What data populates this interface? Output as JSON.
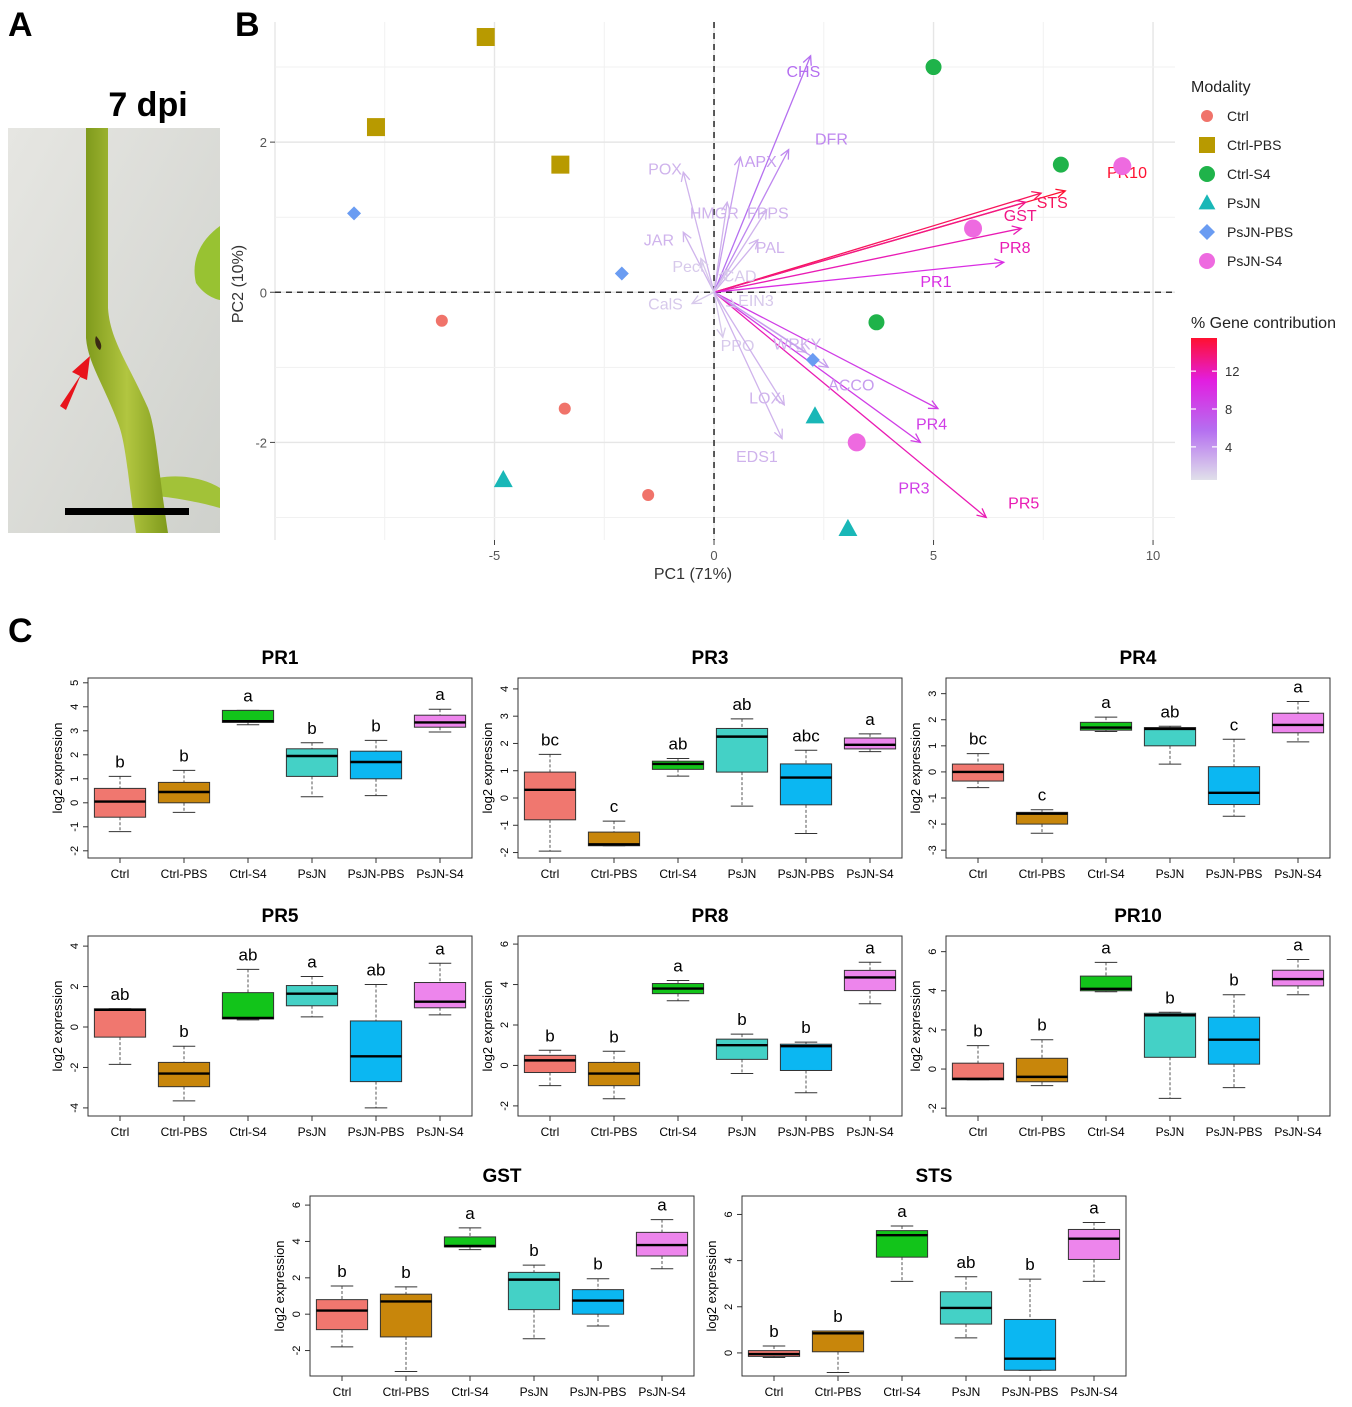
{
  "panels": {
    "A": "A",
    "B": "B",
    "C": "C"
  },
  "photo": {
    "label": "7 dpi"
  },
  "pca": {
    "type": "scatter",
    "xlabel": "PC1 (71%)",
    "ylabel": "PC2 (10%)",
    "xlim": [
      -10,
      10.5
    ],
    "ylim": [
      -3.3,
      3.6
    ],
    "xticks": [
      -5,
      0,
      5,
      10
    ],
    "yticks": [
      -2,
      0,
      2
    ],
    "legend_title": "Modality",
    "gradient_title": "% Gene contribution",
    "gradient_ticks": [
      4,
      8,
      12
    ],
    "groups": [
      {
        "name": "Ctrl",
        "color": "#f0736a",
        "shape": "circle",
        "points": [
          [
            -6.2,
            -0.38
          ],
          [
            -3.4,
            -1.55
          ],
          [
            -1.5,
            -2.7
          ]
        ]
      },
      {
        "name": "Ctrl-PBS",
        "color": "#b89a00",
        "shape": "square",
        "points": [
          [
            -5.2,
            3.4
          ],
          [
            -7.7,
            2.2
          ],
          [
            -3.5,
            1.7
          ]
        ]
      },
      {
        "name": "Ctrl-S4",
        "color": "#1fb34a",
        "shape": "circle",
        "points": [
          [
            5.0,
            3.0
          ],
          [
            7.9,
            1.7
          ],
          [
            3.7,
            -0.4
          ]
        ]
      },
      {
        "name": "PsJN",
        "color": "#19b7b7",
        "shape": "triangle",
        "points": [
          [
            -4.8,
            -2.5
          ],
          [
            2.3,
            -1.65
          ],
          [
            3.05,
            -3.15
          ]
        ]
      },
      {
        "name": "PsJN-PBS",
        "color": "#6a9cf2",
        "shape": "diamond",
        "points": [
          [
            -8.2,
            1.05
          ],
          [
            -2.1,
            0.25
          ],
          [
            2.25,
            -0.9
          ]
        ]
      },
      {
        "name": "PsJN-S4",
        "color": "#ee6ae0",
        "shape": "circle",
        "points": [
          [
            9.3,
            1.68
          ],
          [
            5.9,
            0.85
          ],
          [
            3.25,
            -2.0
          ]
        ]
      }
    ],
    "loadings": [
      {
        "gene": "PR10",
        "x": 8.0,
        "y": 1.35,
        "contribution": 14,
        "lx": 8.95,
        "ly": 1.6
      },
      {
        "gene": "STS",
        "x": 7.45,
        "y": 1.32,
        "contribution": 13,
        "lx": 7.35,
        "ly": 1.2
      },
      {
        "gene": "GST",
        "x": 7.1,
        "y": 1.2,
        "contribution": 12,
        "lx": 6.6,
        "ly": 1.03
      },
      {
        "gene": "PR8",
        "x": 7.0,
        "y": 0.85,
        "contribution": 11,
        "lx": 6.5,
        "ly": 0.6
      },
      {
        "gene": "PR1",
        "x": 6.6,
        "y": 0.4,
        "contribution": 9,
        "lx": 4.7,
        "ly": 0.15
      },
      {
        "gene": "PR5",
        "x": 6.2,
        "y": -3.0,
        "contribution": 11,
        "lx": 6.7,
        "ly": -2.8
      },
      {
        "gene": "PR4",
        "x": 5.1,
        "y": -1.55,
        "contribution": 8,
        "lx": 4.6,
        "ly": -1.75
      },
      {
        "gene": "PR3",
        "x": 4.7,
        "y": -2.0,
        "contribution": 8,
        "lx": 4.2,
        "ly": -2.6
      },
      {
        "gene": "CHS",
        "x": 2.2,
        "y": 3.15,
        "contribution": 5,
        "lx": 1.65,
        "ly": 2.95
      },
      {
        "gene": "DFR",
        "x": 1.7,
        "y": 1.9,
        "contribution": 4,
        "lx": 2.3,
        "ly": 2.05
      },
      {
        "gene": "APX",
        "x": 0.6,
        "y": 1.8,
        "contribution": 3,
        "lx": 0.7,
        "ly": 1.75
      },
      {
        "gene": "POX",
        "x": -0.7,
        "y": 1.6,
        "contribution": 2,
        "lx": -1.5,
        "ly": 1.65
      },
      {
        "gene": "HMGR",
        "x": 0.3,
        "y": 1.2,
        "contribution": 2,
        "lx": -0.55,
        "ly": 1.06
      },
      {
        "gene": "FPPS",
        "x": 1.2,
        "y": 1.1,
        "contribution": 2,
        "lx": 0.75,
        "ly": 1.06
      },
      {
        "gene": "JAR",
        "x": -0.7,
        "y": 0.8,
        "contribution": 2,
        "lx": -1.6,
        "ly": 0.7
      },
      {
        "gene": "PAL",
        "x": 1.0,
        "y": 0.7,
        "contribution": 2,
        "lx": 0.95,
        "ly": 0.6
      },
      {
        "gene": "Pect",
        "x": -0.3,
        "y": 0.45,
        "contribution": 1,
        "lx": -0.95,
        "ly": 0.35
      },
      {
        "gene": "CAD",
        "x": 0.3,
        "y": 0.3,
        "contribution": 1,
        "lx": 0.2,
        "ly": 0.22
      },
      {
        "gene": "CalS",
        "x": -0.5,
        "y": -0.15,
        "contribution": 1,
        "lx": -1.5,
        "ly": -0.15
      },
      {
        "gene": "EIN3",
        "x": 0.5,
        "y": -0.2,
        "contribution": 1,
        "lx": 0.55,
        "ly": -0.1
      },
      {
        "gene": "PPO",
        "x": 0.2,
        "y": -0.6,
        "contribution": 1,
        "lx": 0.15,
        "ly": -0.7
      },
      {
        "gene": "WRKY",
        "x": 2.1,
        "y": -0.8,
        "contribution": 2,
        "lx": 1.35,
        "ly": -0.68
      },
      {
        "gene": "ACCO",
        "x": 2.6,
        "y": -1.0,
        "contribution": 3,
        "lx": 2.6,
        "ly": -1.23
      },
      {
        "gene": "LOX",
        "x": 1.6,
        "y": -1.5,
        "contribution": 2,
        "lx": 0.8,
        "ly": -1.4
      },
      {
        "gene": "EDS1",
        "x": 1.55,
        "y": -1.95,
        "contribution": 2,
        "lx": 0.5,
        "ly": -2.18
      }
    ]
  },
  "chart_data": [
    {
      "type": "box",
      "title": "PR1",
      "ylabel": "log2 expression",
      "yticks": [
        -2,
        -1,
        0,
        1,
        2,
        3,
        4,
        5
      ],
      "ylim": [
        -2.3,
        5.2
      ],
      "categories": [
        "Ctrl",
        "Ctrl-PBS",
        "Ctrl-S4",
        "PsJN",
        "PsJN-PBS",
        "PsJN-S4"
      ],
      "boxes": [
        [
          -1.2,
          -0.6,
          0.05,
          0.6,
          1.1
        ],
        [
          -0.4,
          0.0,
          0.45,
          0.85,
          1.35
        ],
        [
          3.25,
          3.35,
          3.4,
          3.85,
          3.85
        ],
        [
          0.25,
          1.1,
          1.95,
          2.25,
          2.5
        ],
        [
          0.3,
          1.0,
          1.7,
          2.15,
          2.6
        ],
        [
          2.95,
          3.15,
          3.35,
          3.65,
          3.9
        ]
      ],
      "letters": [
        "b",
        "b",
        "a",
        "b",
        "b",
        "a"
      ]
    },
    {
      "type": "box",
      "title": "PR3",
      "ylabel": "log2 expression",
      "yticks": [
        -2,
        -1,
        0,
        1,
        2,
        3,
        4
      ],
      "ylim": [
        -2.2,
        4.4
      ],
      "categories": [
        "Ctrl",
        "Ctrl-PBS",
        "Ctrl-S4",
        "PsJN",
        "PsJN-PBS",
        "PsJN-S4"
      ],
      "boxes": [
        [
          -1.95,
          -0.8,
          0.3,
          0.95,
          1.6
        ],
        [
          -1.75,
          -1.75,
          -1.7,
          -1.25,
          -0.85
        ],
        [
          0.8,
          1.05,
          1.25,
          1.35,
          1.45
        ],
        [
          -0.3,
          0.95,
          2.25,
          2.55,
          2.9
        ],
        [
          -1.3,
          -0.25,
          0.75,
          1.25,
          1.75
        ],
        [
          1.7,
          1.8,
          1.95,
          2.2,
          2.35
        ]
      ],
      "letters": [
        "bc",
        "c",
        "ab",
        "ab",
        "abc",
        "a"
      ]
    },
    {
      "type": "box",
      "title": "PR4",
      "ylabel": "log2 expression",
      "yticks": [
        -3,
        -2,
        -1,
        0,
        1,
        2,
        3
      ],
      "ylim": [
        -3.3,
        3.6
      ],
      "categories": [
        "Ctrl",
        "Ctrl-PBS",
        "Ctrl-S4",
        "PsJN",
        "PsJN-PBS",
        "PsJN-S4"
      ],
      "boxes": [
        [
          -0.6,
          -0.35,
          0.0,
          0.3,
          0.7
        ],
        [
          -2.35,
          -2.0,
          -1.6,
          -1.55,
          -1.45
        ],
        [
          1.55,
          1.6,
          1.7,
          1.9,
          2.1
        ],
        [
          0.3,
          1.0,
          1.65,
          1.7,
          1.75
        ],
        [
          -1.7,
          -1.25,
          -0.8,
          0.2,
          1.25
        ],
        [
          1.15,
          1.5,
          1.8,
          2.25,
          2.7
        ]
      ],
      "letters": [
        "bc",
        "c",
        "a",
        "ab",
        "c",
        "a"
      ]
    },
    {
      "type": "box",
      "title": "PR5",
      "ylabel": "log2 expression",
      "yticks": [
        -4,
        -2,
        0,
        2,
        4
      ],
      "ylim": [
        -4.4,
        4.5
      ],
      "categories": [
        "Ctrl",
        "Ctrl-PBS",
        "Ctrl-S4",
        "PsJN",
        "PsJN-PBS",
        "PsJN-S4"
      ],
      "boxes": [
        [
          -1.85,
          -0.5,
          0.85,
          0.9,
          0.9
        ],
        [
          -3.65,
          -2.95,
          -2.3,
          -1.75,
          -0.95
        ],
        [
          0.35,
          0.4,
          0.45,
          1.7,
          2.85
        ],
        [
          0.5,
          1.05,
          1.65,
          2.05,
          2.5
        ],
        [
          -4.0,
          -2.7,
          -1.45,
          0.3,
          2.1
        ],
        [
          0.6,
          0.95,
          1.25,
          2.2,
          3.15
        ]
      ],
      "letters": [
        "ab",
        "b",
        "ab",
        "a",
        "ab",
        "a"
      ]
    },
    {
      "type": "box",
      "title": "PR8",
      "ylabel": "log2 expression",
      "yticks": [
        -2,
        0,
        2,
        4,
        6
      ],
      "ylim": [
        -2.5,
        6.4
      ],
      "categories": [
        "Ctrl",
        "Ctrl-PBS",
        "Ctrl-S4",
        "PsJN",
        "PsJN-PBS",
        "PsJN-S4"
      ],
      "boxes": [
        [
          -1.0,
          -0.35,
          0.25,
          0.5,
          0.75
        ],
        [
          -1.65,
          -1.0,
          -0.4,
          0.15,
          0.7
        ],
        [
          3.2,
          3.55,
          3.8,
          4.05,
          4.2
        ],
        [
          -0.4,
          0.3,
          1.0,
          1.3,
          1.55
        ],
        [
          -1.35,
          -0.25,
          0.95,
          1.05,
          1.15
        ],
        [
          3.05,
          3.7,
          4.35,
          4.7,
          5.1
        ]
      ],
      "letters": [
        "b",
        "b",
        "a",
        "b",
        "b",
        "a"
      ]
    },
    {
      "type": "box",
      "title": "PR10",
      "ylabel": "log2 expression",
      "yticks": [
        -2,
        0,
        2,
        4,
        6
      ],
      "ylim": [
        -2.4,
        6.8
      ],
      "categories": [
        "Ctrl",
        "Ctrl-PBS",
        "Ctrl-S4",
        "PsJN",
        "PsJN-PBS",
        "PsJN-S4"
      ],
      "boxes": [
        [
          -0.55,
          -0.55,
          -0.5,
          0.3,
          1.2
        ],
        [
          -0.85,
          -0.65,
          -0.4,
          0.55,
          1.5
        ],
        [
          3.95,
          4.0,
          4.1,
          4.75,
          5.45
        ],
        [
          -1.5,
          0.6,
          2.75,
          2.85,
          2.9
        ],
        [
          -0.95,
          0.25,
          1.5,
          2.65,
          3.8
        ],
        [
          3.8,
          4.25,
          4.6,
          5.05,
          5.6
        ]
      ],
      "letters": [
        "b",
        "b",
        "a",
        "b",
        "b",
        "a"
      ]
    },
    {
      "type": "box",
      "title": "GST",
      "ylabel": "log2 expression",
      "yticks": [
        -2,
        0,
        2,
        4,
        6
      ],
      "ylim": [
        -3.4,
        6.5
      ],
      "categories": [
        "Ctrl",
        "Ctrl-PBS",
        "Ctrl-S4",
        "PsJN",
        "PsJN-PBS",
        "PsJN-S4"
      ],
      "boxes": [
        [
          -1.8,
          -0.85,
          0.2,
          0.8,
          1.55
        ],
        [
          -3.15,
          -1.25,
          0.7,
          1.1,
          1.5
        ],
        [
          3.55,
          3.7,
          3.75,
          4.25,
          4.75
        ],
        [
          -1.35,
          0.25,
          1.9,
          2.3,
          2.7
        ],
        [
          -0.65,
          0.0,
          0.75,
          1.35,
          1.95
        ],
        [
          2.5,
          3.2,
          3.8,
          4.5,
          5.2
        ]
      ],
      "letters": [
        "b",
        "b",
        "a",
        "b",
        "b",
        "a"
      ]
    },
    {
      "type": "box",
      "title": "STS",
      "ylabel": "log2 expression",
      "yticks": [
        0,
        2,
        4,
        6
      ],
      "ylim": [
        -1.0,
        6.8
      ],
      "categories": [
        "Ctrl",
        "Ctrl-PBS",
        "Ctrl-S4",
        "PsJN",
        "PsJN-PBS",
        "PsJN-S4"
      ],
      "boxes": [
        [
          -0.2,
          -0.15,
          -0.05,
          0.1,
          0.3
        ],
        [
          -0.85,
          0.05,
          0.85,
          0.95,
          0.95
        ],
        [
          3.1,
          4.15,
          5.1,
          5.3,
          5.5
        ],
        [
          0.65,
          1.25,
          1.95,
          2.65,
          3.3
        ],
        [
          -0.75,
          -0.75,
          -0.25,
          1.45,
          3.2
        ],
        [
          3.1,
          4.05,
          4.95,
          5.35,
          5.65
        ]
      ],
      "letters": [
        "b",
        "b",
        "a",
        "ab",
        "b",
        "a"
      ]
    }
  ],
  "box_colors": [
    "#f0776f",
    "#c8860b",
    "#12c41a",
    "#44d1c6",
    "#0bb7f2",
    "#ed85ec"
  ]
}
